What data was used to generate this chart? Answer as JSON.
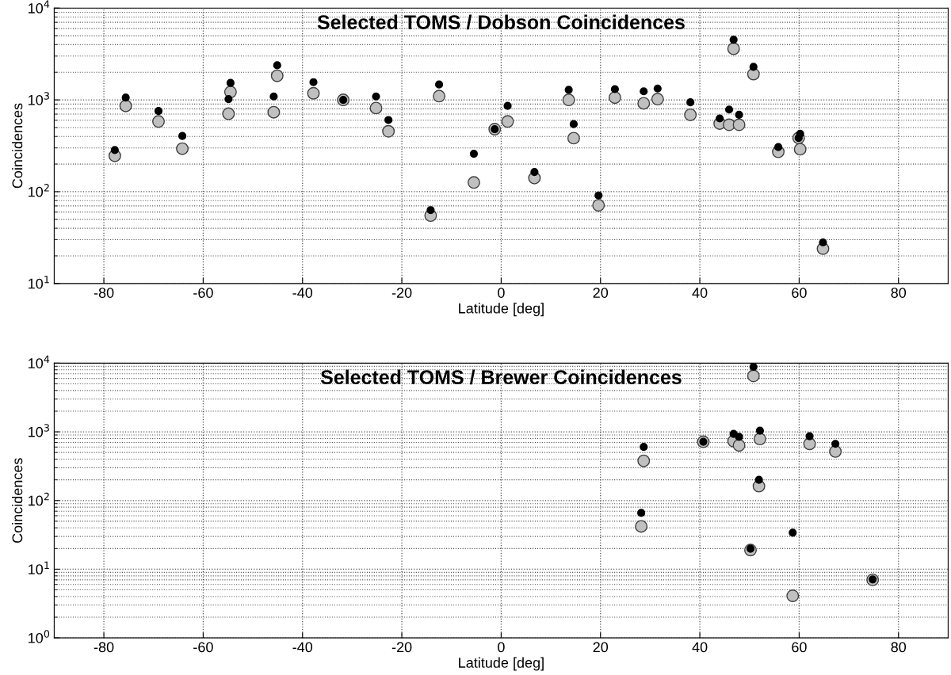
{
  "chart_data": [
    {
      "type": "scatter",
      "title": "Selected TOMS / Dobson Coincidences",
      "xlabel": "Latitude [deg]",
      "ylabel": "Coincidences",
      "log": "y",
      "grid": true,
      "marker": "circle",
      "xlim": [
        -90,
        90
      ],
      "xticks": [
        -80,
        -60,
        -40,
        -20,
        0,
        20,
        40,
        60,
        80
      ],
      "ylim": [
        10,
        10000
      ],
      "yticks": [
        {
          "value": 10,
          "label": "10$^{1}$"
        },
        {
          "value": 100,
          "label": "10$^{2}$"
        },
        {
          "value": 1000,
          "label": "10$^{3}$"
        },
        {
          "value": 10000,
          "label": "10$^{4}$"
        }
      ],
      "series": [
        {
          "color": "#c0c0c0",
          "x": [
            -77.8,
            -75.6,
            -69.0,
            -64.2,
            -54.9,
            -54.5,
            -45.8,
            -45.1,
            -37.8,
            -31.8,
            -25.2,
            -22.7,
            -14.2,
            -12.5,
            -5.5,
            -1.3,
            1.3,
            6.7,
            13.6,
            14.6,
            19.6,
            22.9,
            28.7,
            31.5,
            38.1,
            44.0,
            45.9,
            47.9,
            46.8,
            50.8,
            55.8,
            59.9,
            60.2,
            64.8
          ],
          "values": [
            246,
            860,
            582,
            294,
            707,
            1220,
            734,
            1830,
            1180,
            1000,
            815,
            455,
            55,
            1100,
            126,
            480,
            582,
            141,
            1000,
            383,
            71,
            1060,
            918,
            1020,
            688,
            553,
            536,
            536,
            3610,
            1910,
            272,
            385,
            290,
            24
          ]
        },
        {
          "color": "#000000",
          "x": [
            -77.8,
            -75.6,
            -69.0,
            -64.2,
            -54.9,
            -54.5,
            -45.8,
            -45.1,
            -37.8,
            -31.8,
            -25.2,
            -22.7,
            -14.2,
            -12.5,
            -5.5,
            -1.3,
            1.3,
            6.7,
            13.6,
            14.6,
            19.6,
            22.9,
            28.7,
            31.5,
            38.1,
            44.0,
            45.9,
            47.9,
            46.8,
            50.8,
            55.8,
            59.9,
            60.2,
            64.8
          ],
          "values": [
            284,
            1060,
            757,
            404,
            1020,
            1530,
            1090,
            2380,
            1560,
            1000,
            1090,
            604,
            63,
            1470,
            259,
            480,
            860,
            164,
            1290,
            545,
            91,
            1310,
            1240,
            1330,
            940,
            628,
            785,
            688,
            4530,
            2290,
            306,
            385,
            428,
            28
          ]
        }
      ]
    },
    {
      "type": "scatter",
      "title": "Selected TOMS / Brewer Coincidences",
      "xlabel": "Latitude [deg]",
      "ylabel": "Coincidences",
      "log": "y",
      "grid": true,
      "marker": "circle",
      "xlim": [
        -90,
        90
      ],
      "xticks": [
        -80,
        -60,
        -40,
        -20,
        0,
        20,
        40,
        60,
        80
      ],
      "ylim": [
        1,
        10000
      ],
      "yticks": [
        {
          "value": 1,
          "label": "10$^{0}$"
        },
        {
          "value": 10,
          "label": "10$^{1}$"
        },
        {
          "value": 100,
          "label": "10$^{2}$"
        },
        {
          "value": 1000,
          "label": "10$^{3}$"
        },
        {
          "value": 10000,
          "label": "10$^{4}$"
        }
      ],
      "series": [
        {
          "color": "#c0c0c0",
          "x": [
            28.7,
            28.2,
            40.7,
            46.8,
            47.9,
            50.8,
            52.1,
            51.9,
            50.2,
            58.7,
            62.1,
            67.3,
            74.8
          ],
          "values": [
            378,
            42,
            718,
            733,
            635,
            6520,
            787,
            162,
            19,
            4.1,
            668,
            518,
            7
          ]
        },
        {
          "color": "#000000",
          "x": [
            28.7,
            28.2,
            40.7,
            46.8,
            47.9,
            50.8,
            52.1,
            51.9,
            50.2,
            58.7,
            62.1,
            67.3,
            74.8
          ],
          "values": [
            603,
            66,
            718,
            935,
            845,
            8850,
            1040,
            200,
            19.9,
            34,
            863,
            668,
            7.1
          ]
        }
      ]
    }
  ]
}
